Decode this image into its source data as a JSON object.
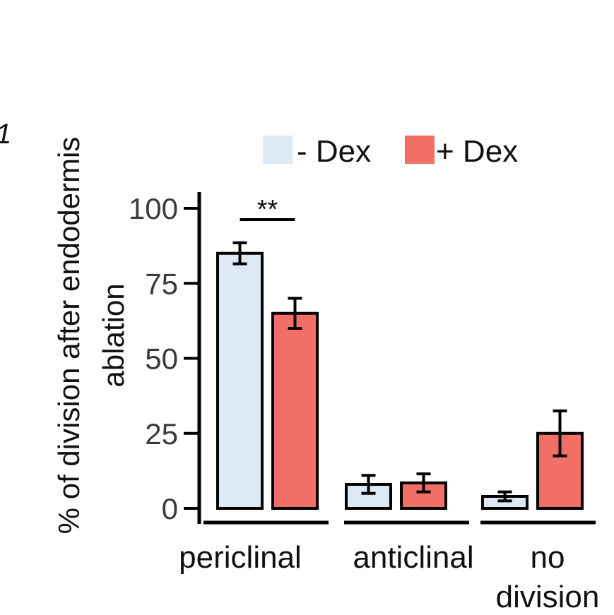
{
  "panel_label": "1",
  "chart_data": {
    "type": "bar",
    "categories": [
      "periclinal",
      "anticlinal",
      "no division"
    ],
    "category_lines": [
      [
        "periclinal"
      ],
      [
        "anticlinal"
      ],
      [
        "no",
        "division"
      ]
    ],
    "series": [
      {
        "name": "- Dex",
        "values": [
          85,
          8,
          4
        ],
        "errors": [
          3.5,
          3,
          1.5
        ],
        "color": "#dce8f4"
      },
      {
        "name": "+ Dex",
        "values": [
          65,
          8.5,
          25
        ],
        "errors": [
          5,
          3,
          7.5
        ],
        "color": "#f07068"
      }
    ],
    "ylabel_lines": [
      "% of division after endodermis",
      "ablation"
    ],
    "yticks": [
      0,
      25,
      50,
      75,
      100
    ],
    "ylim": [
      0,
      100
    ],
    "legend_position": "top",
    "significance": [
      {
        "category": "periclinal",
        "label": "**"
      }
    ]
  }
}
